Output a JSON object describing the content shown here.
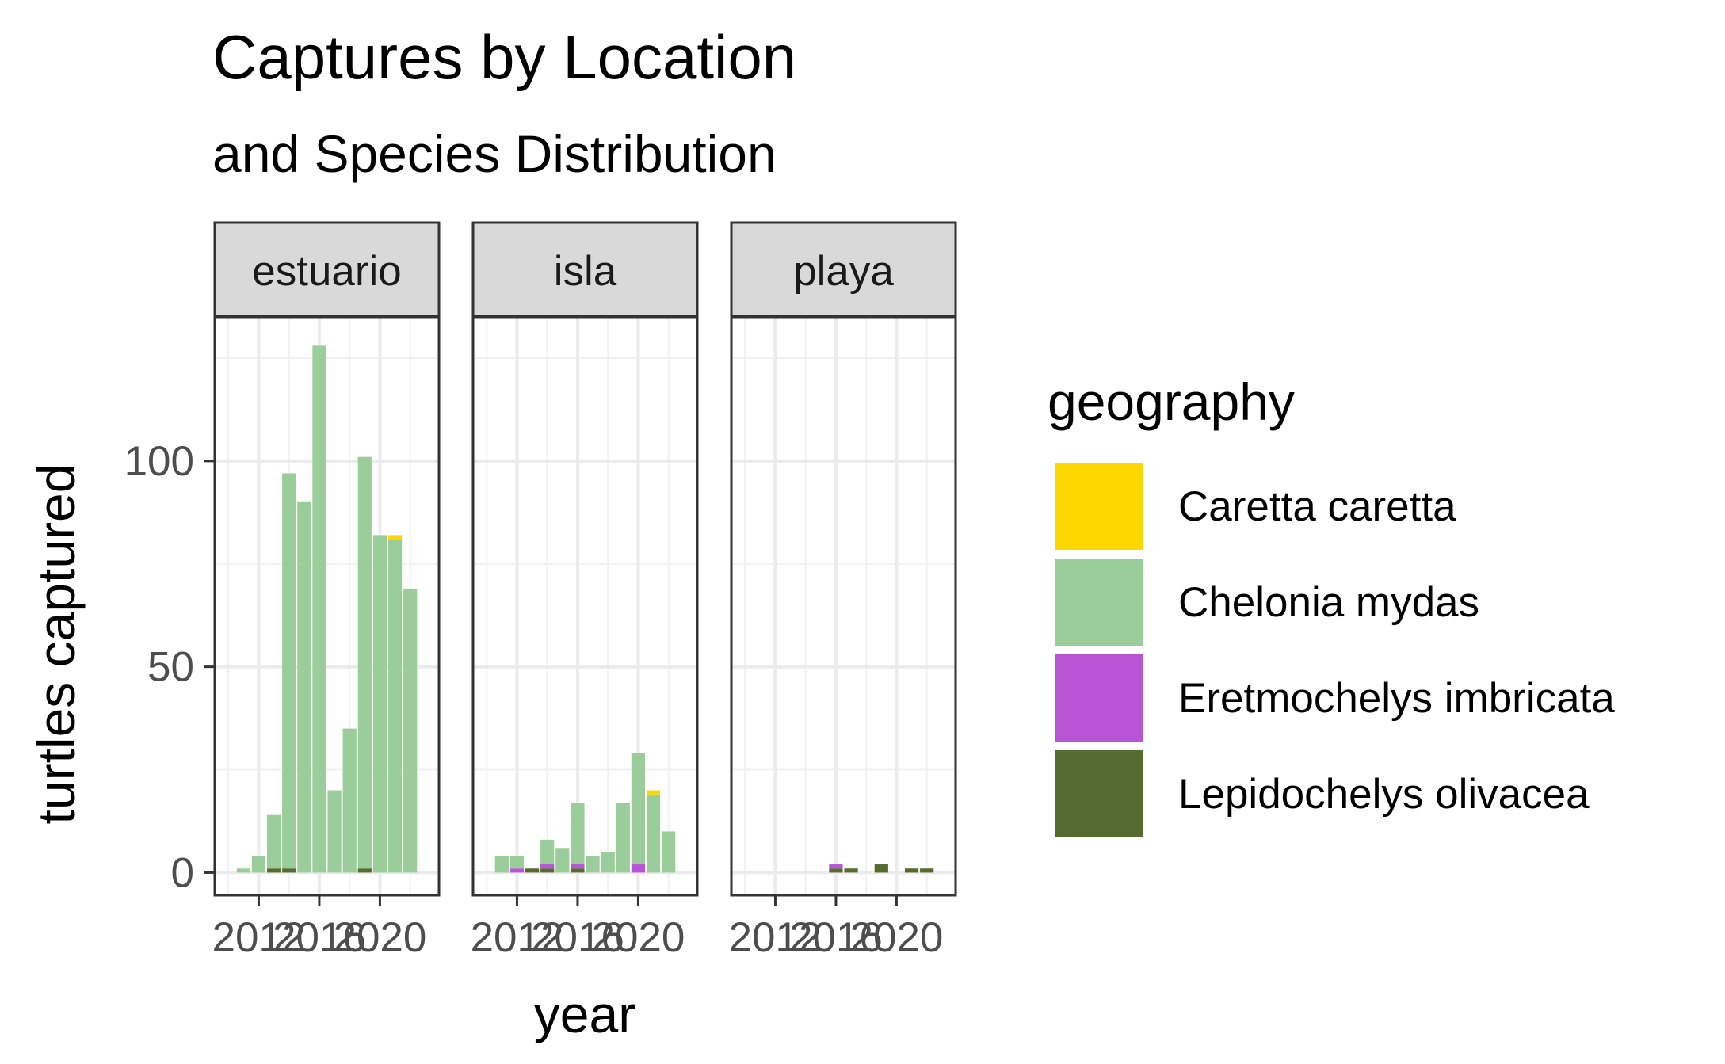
{
  "chart_data": {
    "type": "bar",
    "stacked": true,
    "faceted": true,
    "title": "Captures by Location",
    "subtitle": "and Species Distribution",
    "xlabel": "year",
    "ylabel": "turtles captured",
    "ylim": [
      -5.5,
      135
    ],
    "xlim": [
      2009.1,
      2023.9
    ],
    "x_ticks": [
      2012,
      2016,
      2020
    ],
    "x_tick_labels": [
      "2012",
      "2016",
      "2020"
    ],
    "y_ticks": [
      0,
      50,
      100
    ],
    "y_tick_labels": [
      "0",
      "50",
      "100"
    ],
    "grid": true,
    "legend": {
      "title": "geography",
      "position": "right",
      "entries": [
        "Caretta caretta",
        "Chelonia mydas",
        "Eretmochelys imbricata",
        "Lepidochelys olivacea"
      ]
    },
    "species_colors": {
      "Caretta caretta": "#FFD700",
      "Chelonia mydas": "#9ACD99",
      "Eretmochelys imbricata": "#B954D6",
      "Lepidochelys olivacea": "#556B2F"
    },
    "panels": [
      {
        "name": "estuario",
        "years": [
          2010,
          2011,
          2012,
          2013,
          2014,
          2015,
          2016,
          2017,
          2018,
          2019,
          2020,
          2021,
          2022
        ],
        "series": [
          {
            "name": "Lepidochelys olivacea",
            "values": [
              0,
              0,
              0,
              1,
              1,
              0,
              0,
              0,
              0,
              1,
              0,
              0,
              0
            ]
          },
          {
            "name": "Eretmochelys imbricata",
            "values": [
              0,
              0,
              0,
              0,
              0,
              0,
              0,
              0,
              0,
              0,
              0,
              0,
              0
            ]
          },
          {
            "name": "Chelonia mydas",
            "values": [
              0,
              1,
              4,
              13,
              96,
              90,
              128,
              20,
              35,
              100,
              82,
              81,
              69
            ]
          },
          {
            "name": "Caretta caretta",
            "values": [
              0,
              0,
              0,
              0,
              0,
              0,
              0,
              0,
              0,
              0,
              0,
              1,
              0
            ]
          }
        ]
      },
      {
        "name": "isla",
        "years": [
          2010,
          2011,
          2012,
          2013,
          2014,
          2015,
          2016,
          2017,
          2018,
          2019,
          2020,
          2021,
          2022
        ],
        "series": [
          {
            "name": "Lepidochelys olivacea",
            "values": [
              0,
              0,
              0,
              1,
              1,
              0,
              1,
              0,
              0,
              0,
              0,
              0,
              0
            ]
          },
          {
            "name": "Eretmochelys imbricata",
            "values": [
              0,
              0,
              1,
              0,
              1,
              0,
              1,
              0,
              0,
              0,
              2,
              0,
              0
            ]
          },
          {
            "name": "Chelonia mydas",
            "values": [
              0,
              4,
              3,
              0,
              6,
              6,
              15,
              4,
              5,
              17,
              27,
              19,
              10
            ]
          },
          {
            "name": "Caretta caretta",
            "values": [
              0,
              0,
              0,
              0,
              0,
              0,
              0,
              0,
              0,
              0,
              0,
              1,
              0
            ]
          }
        ]
      },
      {
        "name": "playa",
        "years": [
          2010,
          2011,
          2012,
          2013,
          2014,
          2015,
          2016,
          2017,
          2018,
          2019,
          2020,
          2021,
          2022
        ],
        "series": [
          {
            "name": "Lepidochelys olivacea",
            "values": [
              0,
              0,
              0,
              0,
              0,
              0,
              1,
              1,
              0,
              2,
              0,
              1,
              1
            ]
          },
          {
            "name": "Eretmochelys imbricata",
            "values": [
              0,
              0,
              0,
              0,
              0,
              0,
              1,
              0,
              0,
              0,
              0,
              0,
              0
            ]
          },
          {
            "name": "Chelonia mydas",
            "values": [
              0,
              0,
              0,
              0,
              0,
              0,
              0,
              0,
              0,
              0,
              0,
              0,
              0
            ]
          },
          {
            "name": "Caretta caretta",
            "values": [
              0,
              0,
              0,
              0,
              0,
              0,
              0,
              0,
              0,
              0,
              0,
              0,
              0
            ]
          }
        ]
      }
    ]
  }
}
